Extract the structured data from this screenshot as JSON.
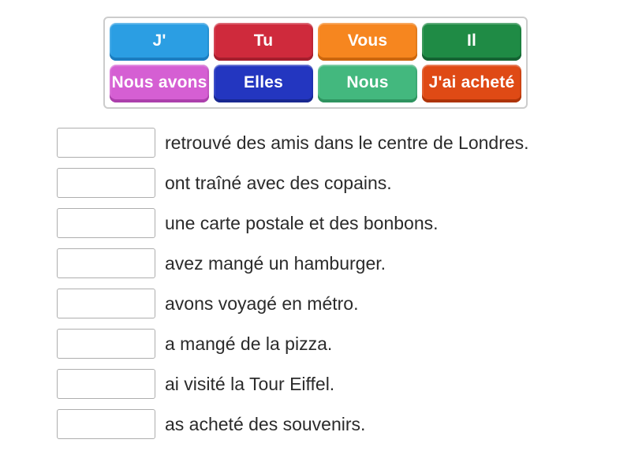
{
  "word_bank": {
    "tiles": [
      {
        "label": "J'",
        "bg": "#2B9EE3",
        "shade": "#1B7DC0"
      },
      {
        "label": "Tu",
        "bg": "#CF2A3C",
        "shade": "#A51E2D"
      },
      {
        "label": "Vous",
        "bg": "#F6861F",
        "shade": "#CB660D"
      },
      {
        "label": "Il",
        "bg": "#1F8B45",
        "shade": "#146332"
      },
      {
        "label": "Nous avons",
        "bg": "#D55FD3",
        "shade": "#AC3FAC"
      },
      {
        "label": "Elles",
        "bg": "#2336C0",
        "shade": "#182890"
      },
      {
        "label": "Nous",
        "bg": "#43B87E",
        "shade": "#2E935F"
      },
      {
        "label": "J'ai acheté",
        "bg": "#DF4A15",
        "shade": "#AE3408"
      }
    ]
  },
  "sentences": [
    {
      "text": "retrouvé des amis dans le centre de Londres."
    },
    {
      "text": "ont traîné avec des copains."
    },
    {
      "text": "une carte postale et des bonbons."
    },
    {
      "text": "avez mangé un hamburger."
    },
    {
      "text": "avons voyagé en métro."
    },
    {
      "text": "a mangé de la pizza."
    },
    {
      "text": "ai visité la Tour Eiffel."
    },
    {
      "text": "as acheté des souvenirs."
    }
  ]
}
